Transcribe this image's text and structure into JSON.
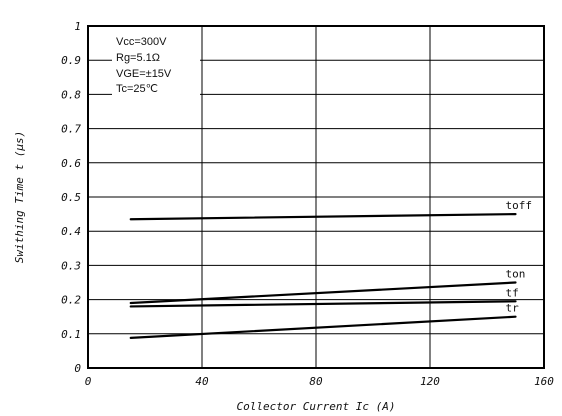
{
  "chart_data": {
    "type": "line",
    "xlabel": "Collector Current Ic (A)",
    "ylabel": "Swithing Time t (µs)",
    "xlim": [
      0,
      160
    ],
    "ylim": [
      0,
      1
    ],
    "xticks": [
      "0",
      "40",
      "80",
      "120",
      "160"
    ],
    "yticks": [
      "0",
      "0.1",
      "0.2",
      "0.3",
      "0.4",
      "0.5",
      "0.6",
      "0.7",
      "0.8",
      "0.9",
      "1"
    ],
    "grid": true,
    "conditions": [
      "Vcc=300V",
      "Rg=5.1Ω",
      "VGE=±15V",
      "Tc=25℃"
    ],
    "series": [
      {
        "name": "toff",
        "x": [
          15,
          150
        ],
        "values": [
          0.435,
          0.45
        ]
      },
      {
        "name": "ton",
        "x": [
          15,
          150
        ],
        "values": [
          0.19,
          0.25
        ]
      },
      {
        "name": "tf",
        "x": [
          15,
          150
        ],
        "values": [
          0.18,
          0.195
        ]
      },
      {
        "name": "tr",
        "x": [
          15,
          150
        ],
        "values": [
          0.088,
          0.15
        ]
      }
    ]
  }
}
